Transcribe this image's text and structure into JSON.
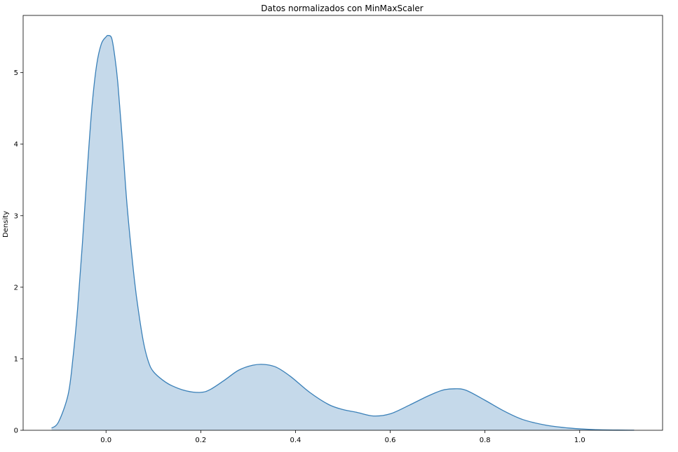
{
  "chart_data": {
    "type": "area",
    "title": "Datos normalizados con MinMaxScaler",
    "xlabel": "",
    "ylabel": "Density",
    "xlim": [
      -0.175,
      1.175
    ],
    "ylim": [
      0,
      5.8
    ],
    "xticks": [
      "0.0",
      "0.2",
      "0.4",
      "0.6",
      "0.8",
      "1.0"
    ],
    "xtick_values": [
      0.0,
      0.2,
      0.4,
      0.6,
      0.8,
      1.0
    ],
    "yticks": [
      "0",
      "1",
      "2",
      "3",
      "4",
      "5"
    ],
    "ytick_values": [
      0,
      1,
      2,
      3,
      4,
      5
    ],
    "grid": false,
    "series": [
      {
        "x": [
          -0.115,
          -0.1,
          -0.08,
          -0.07,
          -0.06,
          -0.05,
          -0.04,
          -0.03,
          -0.02,
          -0.01,
          0.0,
          0.005,
          0.012,
          0.018,
          0.025,
          0.035,
          0.045,
          0.06,
          0.07,
          0.08,
          0.09,
          0.1,
          0.12,
          0.14,
          0.17,
          0.2,
          0.22,
          0.25,
          0.28,
          0.31,
          0.335,
          0.36,
          0.39,
          0.43,
          0.47,
          0.5,
          0.53,
          0.565,
          0.6,
          0.64,
          0.68,
          0.71,
          0.735,
          0.76,
          0.8,
          0.84,
          0.88,
          0.93,
          0.98,
          1.03,
          1.08,
          1.115
        ],
        "y": [
          0.03,
          0.12,
          0.5,
          1.0,
          1.7,
          2.6,
          3.6,
          4.5,
          5.1,
          5.4,
          5.5,
          5.52,
          5.48,
          5.25,
          4.85,
          4.0,
          3.1,
          2.1,
          1.6,
          1.2,
          0.95,
          0.82,
          0.7,
          0.62,
          0.55,
          0.53,
          0.57,
          0.7,
          0.84,
          0.91,
          0.92,
          0.88,
          0.75,
          0.53,
          0.36,
          0.29,
          0.25,
          0.2,
          0.23,
          0.35,
          0.48,
          0.56,
          0.58,
          0.56,
          0.42,
          0.27,
          0.15,
          0.07,
          0.03,
          0.01,
          0.003,
          0.001
        ]
      }
    ],
    "colors": {
      "line": "#3a80b8",
      "fill": "#c5d9ea"
    }
  }
}
